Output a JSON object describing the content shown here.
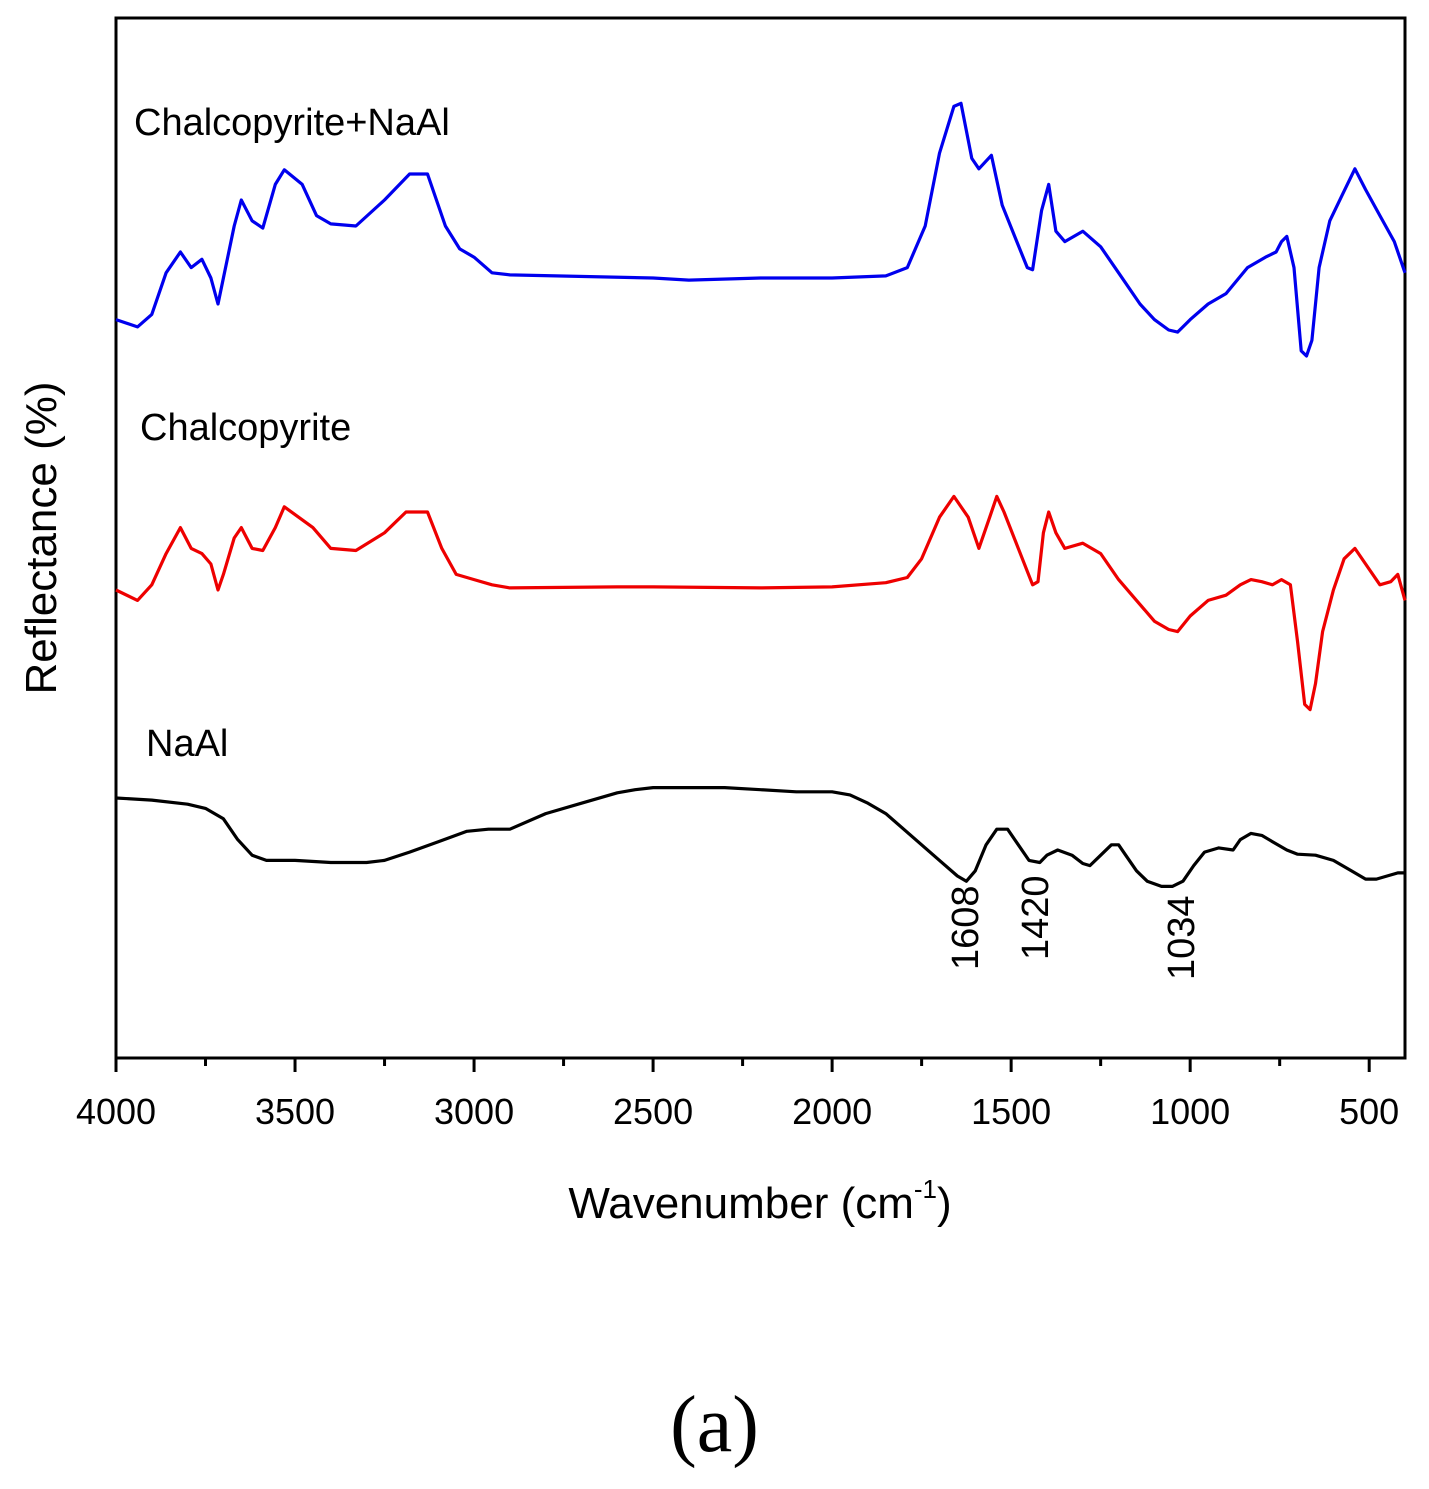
{
  "panel_label": "(a)",
  "chart_data": {
    "type": "line",
    "title": "",
    "xlabel": "Wavenumber (cm",
    "xlabel_sup": "-1",
    "xlabel_close": ")",
    "ylabel": "Reflectance (%)",
    "xlim": [
      4000,
      400
    ],
    "ylim": [
      0,
      100
    ],
    "x_major_ticks": [
      4000,
      3500,
      3000,
      2500,
      2000,
      1500,
      1000,
      500
    ],
    "x_tick_labels": [
      "4000",
      "3500",
      "3000",
      "2500",
      "2000",
      "1500",
      "1000",
      "500"
    ],
    "x_minor_ticks": [
      3750,
      3250,
      2750,
      2250,
      1750,
      1250,
      750
    ],
    "y_ticks_shown": false,
    "grid": false,
    "series": [
      {
        "name": "Chalcopyrite+NaAl",
        "color": "#0000ee",
        "points": [
          [
            4000,
            71
          ],
          [
            3940,
            70.3
          ],
          [
            3900,
            71.5
          ],
          [
            3860,
            75.5
          ],
          [
            3820,
            77.5
          ],
          [
            3790,
            76
          ],
          [
            3760,
            76.8
          ],
          [
            3735,
            75
          ],
          [
            3715,
            72.5
          ],
          [
            3700,
            75
          ],
          [
            3670,
            80
          ],
          [
            3650,
            82.5
          ],
          [
            3620,
            80.5
          ],
          [
            3590,
            79.8
          ],
          [
            3555,
            84
          ],
          [
            3530,
            85.4
          ],
          [
            3480,
            84
          ],
          [
            3440,
            81
          ],
          [
            3400,
            80.2
          ],
          [
            3330,
            80
          ],
          [
            3250,
            82.5
          ],
          [
            3180,
            85
          ],
          [
            3130,
            85
          ],
          [
            3080,
            80
          ],
          [
            3040,
            77.8
          ],
          [
            3000,
            77
          ],
          [
            2950,
            75.5
          ],
          [
            2900,
            75.3
          ],
          [
            2500,
            75
          ],
          [
            2400,
            74.8
          ],
          [
            2200,
            75
          ],
          [
            2000,
            75
          ],
          [
            1850,
            75.2
          ],
          [
            1790,
            76
          ],
          [
            1740,
            80
          ],
          [
            1700,
            87
          ],
          [
            1660,
            91.5
          ],
          [
            1640,
            91.8
          ],
          [
            1610,
            86.5
          ],
          [
            1590,
            85.5
          ],
          [
            1555,
            86.8
          ],
          [
            1525,
            82
          ],
          [
            1490,
            79
          ],
          [
            1455,
            76
          ],
          [
            1440,
            75.8
          ],
          [
            1415,
            81.5
          ],
          [
            1395,
            84
          ],
          [
            1375,
            79.5
          ],
          [
            1350,
            78.5
          ],
          [
            1300,
            79.5
          ],
          [
            1250,
            78
          ],
          [
            1200,
            75.5
          ],
          [
            1140,
            72.5
          ],
          [
            1100,
            71
          ],
          [
            1060,
            70
          ],
          [
            1035,
            69.8
          ],
          [
            1000,
            71
          ],
          [
            950,
            72.5
          ],
          [
            900,
            73.5
          ],
          [
            840,
            76
          ],
          [
            790,
            77
          ],
          [
            760,
            77.5
          ],
          [
            745,
            78.5
          ],
          [
            730,
            79
          ],
          [
            710,
            76
          ],
          [
            690,
            68
          ],
          [
            675,
            67.5
          ],
          [
            660,
            69
          ],
          [
            640,
            76
          ],
          [
            610,
            80.5
          ],
          [
            575,
            83
          ],
          [
            540,
            85.5
          ],
          [
            510,
            83.5
          ],
          [
            470,
            81
          ],
          [
            430,
            78.5
          ],
          [
            400,
            75.5
          ]
        ]
      },
      {
        "name": "Chalcopyrite",
        "color": "#ee0000",
        "points": [
          [
            4000,
            45
          ],
          [
            3940,
            44
          ],
          [
            3900,
            45.5
          ],
          [
            3860,
            48.5
          ],
          [
            3820,
            51
          ],
          [
            3790,
            49
          ],
          [
            3760,
            48.5
          ],
          [
            3735,
            47.5
          ],
          [
            3715,
            45
          ],
          [
            3700,
            46.5
          ],
          [
            3670,
            50
          ],
          [
            3650,
            51
          ],
          [
            3620,
            49
          ],
          [
            3590,
            48.8
          ],
          [
            3555,
            51
          ],
          [
            3530,
            53
          ],
          [
            3490,
            52
          ],
          [
            3450,
            51
          ],
          [
            3400,
            49
          ],
          [
            3330,
            48.8
          ],
          [
            3250,
            50.5
          ],
          [
            3190,
            52.5
          ],
          [
            3130,
            52.5
          ],
          [
            3090,
            49
          ],
          [
            3050,
            46.5
          ],
          [
            3000,
            46
          ],
          [
            2950,
            45.5
          ],
          [
            2900,
            45.2
          ],
          [
            2600,
            45.3
          ],
          [
            2500,
            45.3
          ],
          [
            2200,
            45.2
          ],
          [
            2000,
            45.3
          ],
          [
            1850,
            45.7
          ],
          [
            1790,
            46.2
          ],
          [
            1750,
            48
          ],
          [
            1700,
            52
          ],
          [
            1660,
            54
          ],
          [
            1620,
            52
          ],
          [
            1590,
            49
          ],
          [
            1560,
            52
          ],
          [
            1540,
            54
          ],
          [
            1520,
            52.5
          ],
          [
            1480,
            49
          ],
          [
            1440,
            45.5
          ],
          [
            1425,
            45.8
          ],
          [
            1410,
            50.5
          ],
          [
            1395,
            52.5
          ],
          [
            1375,
            50.5
          ],
          [
            1350,
            49
          ],
          [
            1300,
            49.5
          ],
          [
            1250,
            48.5
          ],
          [
            1200,
            46
          ],
          [
            1150,
            44
          ],
          [
            1100,
            42
          ],
          [
            1060,
            41.2
          ],
          [
            1035,
            41
          ],
          [
            1000,
            42.5
          ],
          [
            950,
            44
          ],
          [
            900,
            44.5
          ],
          [
            860,
            45.5
          ],
          [
            830,
            46
          ],
          [
            800,
            45.8
          ],
          [
            770,
            45.5
          ],
          [
            745,
            46
          ],
          [
            720,
            45.5
          ],
          [
            700,
            40
          ],
          [
            680,
            34
          ],
          [
            665,
            33.5
          ],
          [
            650,
            36
          ],
          [
            630,
            41
          ],
          [
            600,
            45
          ],
          [
            570,
            48
          ],
          [
            540,
            49
          ],
          [
            510,
            47.5
          ],
          [
            470,
            45.5
          ],
          [
            440,
            45.8
          ],
          [
            420,
            46.5
          ],
          [
            400,
            44
          ]
        ]
      },
      {
        "name": "NaAl",
        "color": "#000000",
        "points": [
          [
            4000,
            25
          ],
          [
            3900,
            24.8
          ],
          [
            3800,
            24.4
          ],
          [
            3750,
            24
          ],
          [
            3700,
            23
          ],
          [
            3660,
            21
          ],
          [
            3620,
            19.5
          ],
          [
            3580,
            19
          ],
          [
            3500,
            19
          ],
          [
            3400,
            18.8
          ],
          [
            3300,
            18.8
          ],
          [
            3250,
            19
          ],
          [
            3180,
            19.8
          ],
          [
            3100,
            20.8
          ],
          [
            3020,
            21.8
          ],
          [
            2960,
            22
          ],
          [
            2900,
            22
          ],
          [
            2800,
            23.5
          ],
          [
            2700,
            24.5
          ],
          [
            2600,
            25.5
          ],
          [
            2550,
            25.8
          ],
          [
            2500,
            26
          ],
          [
            2400,
            26
          ],
          [
            2300,
            26
          ],
          [
            2200,
            25.8
          ],
          [
            2100,
            25.6
          ],
          [
            2000,
            25.6
          ],
          [
            1950,
            25.3
          ],
          [
            1900,
            24.5
          ],
          [
            1850,
            23.5
          ],
          [
            1800,
            22
          ],
          [
            1750,
            20.5
          ],
          [
            1700,
            19
          ],
          [
            1650,
            17.5
          ],
          [
            1625,
            17
          ],
          [
            1600,
            18
          ],
          [
            1570,
            20.5
          ],
          [
            1540,
            22
          ],
          [
            1510,
            22
          ],
          [
            1480,
            20.5
          ],
          [
            1450,
            19
          ],
          [
            1420,
            18.8
          ],
          [
            1400,
            19.5
          ],
          [
            1370,
            20
          ],
          [
            1330,
            19.5
          ],
          [
            1300,
            18.7
          ],
          [
            1280,
            18.5
          ],
          [
            1250,
            19.5
          ],
          [
            1220,
            20.5
          ],
          [
            1200,
            20.5
          ],
          [
            1180,
            19.5
          ],
          [
            1150,
            18
          ],
          [
            1120,
            17
          ],
          [
            1080,
            16.5
          ],
          [
            1050,
            16.5
          ],
          [
            1020,
            17
          ],
          [
            990,
            18.5
          ],
          [
            960,
            19.8
          ],
          [
            920,
            20.2
          ],
          [
            880,
            20
          ],
          [
            860,
            21
          ],
          [
            830,
            21.6
          ],
          [
            800,
            21.4
          ],
          [
            770,
            20.8
          ],
          [
            730,
            20
          ],
          [
            700,
            19.6
          ],
          [
            650,
            19.5
          ],
          [
            600,
            19
          ],
          [
            550,
            18
          ],
          [
            510,
            17.2
          ],
          [
            480,
            17.2
          ],
          [
            450,
            17.5
          ],
          [
            420,
            17.8
          ],
          [
            400,
            17.8
          ]
        ]
      }
    ],
    "annotations": [
      {
        "text": "1608",
        "x": 1608,
        "y": 12
      },
      {
        "text": "1420",
        "x": 1420,
        "y": 14
      },
      {
        "text": "1034",
        "x": 1034,
        "y": 11
      }
    ]
  }
}
